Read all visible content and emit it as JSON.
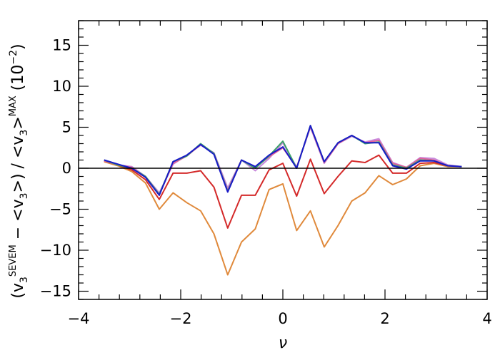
{
  "chart_data": {
    "type": "line",
    "xlabel": "ν",
    "ylabel": "(v3^SEVEM − <v3>) / <v3>^MAX (10⁻²)",
    "ylabel_parts": {
      "open_paren": "(v",
      "sub_3": "3",
      "sup_sevem": "SEVEM",
      "middle": " − <v",
      "sub_3b": "3",
      "close_mid": ">) / <v",
      "sub_3c": "3",
      "close_end": ">",
      "sup_max": "MAX",
      "units_open": " (10",
      "units_exp": "−2",
      "units_close": ")"
    },
    "xlim": [
      -4,
      4
    ],
    "ylim": [
      -16,
      18
    ],
    "x_ticks": [
      -4,
      -2,
      0,
      2,
      4
    ],
    "x_tick_labels": [
      "−4",
      "−2",
      "0",
      "2",
      "4"
    ],
    "y_ticks": [
      -15,
      -10,
      -5,
      0,
      5,
      10,
      15
    ],
    "y_tick_labels": [
      "−15",
      "−10",
      "−5",
      "0",
      "5",
      "10",
      "15"
    ],
    "grid": false,
    "reference_line": {
      "y": 0,
      "color": "#000000"
    },
    "x": [
      -3.5,
      -3.23,
      -2.96,
      -2.69,
      -2.42,
      -2.15,
      -1.88,
      -1.61,
      -1.35,
      -1.08,
      -0.81,
      -0.54,
      -0.27,
      0.0,
      0.27,
      0.54,
      0.81,
      1.08,
      1.35,
      1.61,
      1.88,
      2.15,
      2.42,
      2.69,
      2.96,
      3.23,
      3.5
    ],
    "series": [
      {
        "color": "#e08a3c",
        "values": [
          0.8,
          0.3,
          -0.4,
          -1.8,
          -5.0,
          -3.0,
          -4.2,
          -5.2,
          -8.0,
          -13.0,
          -9.0,
          -7.4,
          -2.6,
          -1.9,
          -7.6,
          -5.2,
          -9.6,
          -7.0,
          -4.0,
          -3.0,
          -0.9,
          -2.0,
          -1.3,
          0.3,
          0.6,
          0.2,
          0.2
        ]
      },
      {
        "color": "#d42a2a",
        "values": [
          0.9,
          0.4,
          -0.2,
          -1.4,
          -3.8,
          -0.6,
          -0.6,
          -0.3,
          -2.3,
          -7.3,
          -3.3,
          -3.3,
          -0.2,
          0.6,
          -3.4,
          1.1,
          -3.1,
          -1.0,
          0.9,
          0.7,
          1.6,
          -0.6,
          -0.6,
          0.6,
          0.7,
          0.3,
          0.2
        ]
      },
      {
        "color": "#c98adc",
        "values": [
          1.0,
          0.4,
          0.2,
          -1.0,
          -3.0,
          0.5,
          1.6,
          2.8,
          1.9,
          -2.4,
          1.0,
          -0.3,
          1.2,
          3.1,
          0.1,
          5.0,
          0.6,
          3.0,
          3.9,
          3.2,
          3.6,
          0.7,
          0.1,
          1.3,
          1.2,
          0.4,
          0.2
        ]
      },
      {
        "color": "#e0609a",
        "values": [
          0.9,
          0.4,
          0.1,
          -1.1,
          -3.2,
          0.6,
          1.5,
          2.9,
          1.8,
          -2.7,
          1.0,
          0.1,
          1.4,
          2.5,
          0.1,
          5.1,
          0.7,
          3.0,
          4.0,
          3.1,
          3.4,
          0.6,
          0.1,
          1.2,
          1.0,
          0.3,
          0.2
        ]
      },
      {
        "color": "#3aa36a",
        "values": [
          1.0,
          0.4,
          0.0,
          -1.0,
          -3.2,
          0.8,
          1.5,
          3.0,
          1.8,
          -2.8,
          1.0,
          0.0,
          1.5,
          3.3,
          0.0,
          5.2,
          0.8,
          3.1,
          4.0,
          3.0,
          3.2,
          0.4,
          0.0,
          1.0,
          0.9,
          0.3,
          0.2
        ]
      },
      {
        "color": "#1a1ac8",
        "values": [
          1.0,
          0.5,
          0.0,
          -1.1,
          -3.3,
          0.8,
          1.6,
          2.9,
          1.7,
          -2.9,
          1.0,
          0.2,
          1.6,
          2.6,
          0.0,
          5.2,
          0.8,
          3.1,
          4.0,
          3.1,
          3.1,
          0.3,
          -0.1,
          0.9,
          0.9,
          0.3,
          0.2
        ]
      }
    ]
  }
}
